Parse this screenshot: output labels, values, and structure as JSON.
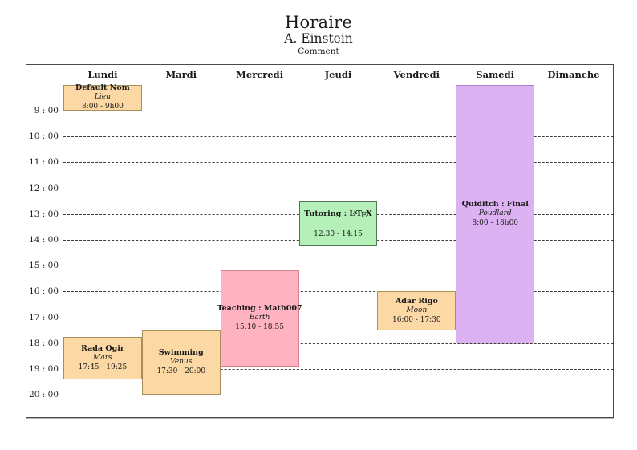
{
  "header": {
    "title": "Horaire",
    "author": "A. Einstein",
    "comment": "Comment"
  },
  "days": [
    "Lundi",
    "Mardi",
    "Mercredi",
    "Jeudi",
    "Vendredi",
    "Samedi",
    "Dimanche"
  ],
  "hours": [
    "9 : 00",
    "10 : 00",
    "11 : 00",
    "12 : 00",
    "13 : 00",
    "14 : 00",
    "15 : 00",
    "16 : 00",
    "17 : 00",
    "18 : 00",
    "19 : 00",
    "20 : 00"
  ],
  "axis": {
    "first_labeled_hour": 9,
    "last_labeled_hour": 20
  },
  "colors": {
    "peach_fill": "#fbd8a4",
    "peach_border": "#a98e5e",
    "pink_fill": "#ffb2c0",
    "pink_border": "#d67f8d",
    "green_fill": "#b5f0b8",
    "green_border": "#557755",
    "purple_fill": "#dcb2f3",
    "purple_border": "#ac7bd2",
    "frame": "#4a4a4a",
    "gridline": "#3d3d3d"
  },
  "events": [
    {
      "title": "Default Nom",
      "location": "Lieu",
      "time": "8:00 - 9h00",
      "day": "Lundi",
      "day_index": 0,
      "start": 8.0,
      "end": 9.0,
      "fill": "#fbd8a4",
      "border": "#a98e5e"
    },
    {
      "title": "Rada Ogir",
      "location": "Mars",
      "time": "17:45 - 19:25",
      "day": "Lundi",
      "day_index": 0,
      "start": 17.75,
      "end": 19.4167,
      "fill": "#fbd8a4",
      "border": "#a98e5e"
    },
    {
      "title": "Swimming",
      "location": "Venus",
      "time": "17:30 - 20:00",
      "day": "Mardi",
      "day_index": 1,
      "start": 17.5,
      "end": 20.0,
      "fill": "#fbd8a4",
      "border": "#a98e5e"
    },
    {
      "title": "Teaching : Math007",
      "location": "Earth",
      "time": "15:10 - 18:55",
      "day": "Mercredi",
      "day_index": 2,
      "start": 15.1667,
      "end": 18.9167,
      "fill": "#ffb2c0",
      "border": "#d67f8d"
    },
    {
      "title": "Tutoring : LaTeX",
      "title_latex": {
        "prefix": "Tutoring : ",
        "parts": [
          "L",
          "A",
          "T",
          "E",
          "X"
        ]
      },
      "location": "",
      "time": "12:30 - 14:15",
      "day": "Jeudi",
      "day_index": 3,
      "start": 12.5,
      "end": 14.25,
      "fill": "#b5f0b8",
      "border": "#557755"
    },
    {
      "title": "Adar Rigo",
      "location": "Moon",
      "time": "16:00 - 17:30",
      "day": "Vendredi",
      "day_index": 4,
      "start": 16.0,
      "end": 17.5,
      "fill": "#fbd8a4",
      "border": "#a98e5e"
    },
    {
      "title": "Quiditch : Final",
      "location": "Poudlard",
      "time": "8:00 - 18h00",
      "day": "Samedi",
      "day_index": 5,
      "start": 8.0,
      "end": 18.0,
      "fill": "#dcb2f3",
      "border": "#ac7bd2"
    }
  ]
}
